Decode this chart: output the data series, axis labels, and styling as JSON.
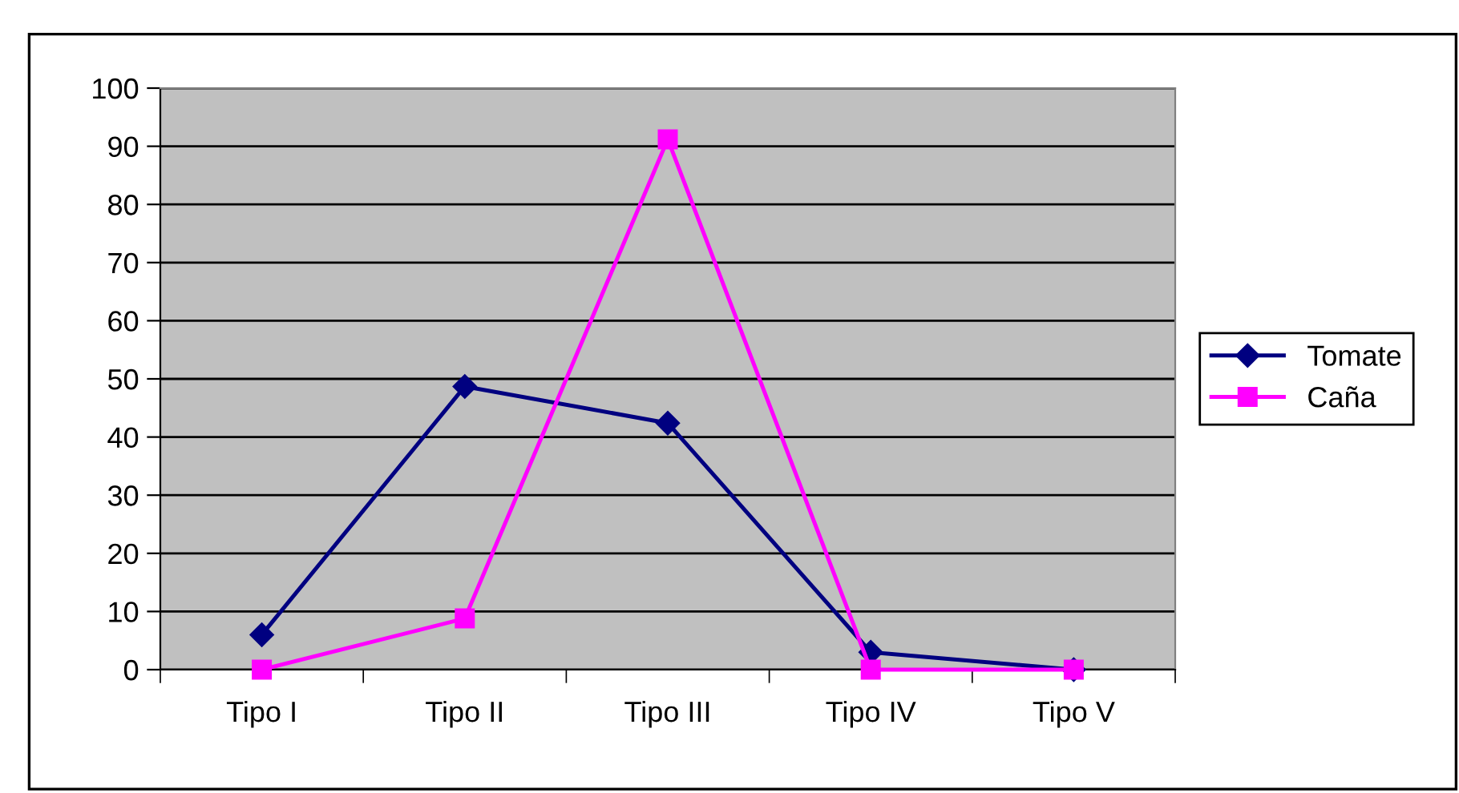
{
  "chart_data": {
    "type": "line",
    "categories": [
      "Tipo I",
      "Tipo II",
      "Tipo III",
      "Tipo IV",
      "Tipo V"
    ],
    "series": [
      {
        "name": "Tomate",
        "color": "#000080",
        "marker": "diamond",
        "values": [
          6,
          48.7,
          42.4,
          3,
          0
        ]
      },
      {
        "name": "Caña",
        "color": "#ff00ff",
        "marker": "square",
        "values": [
          0,
          8.8,
          91.2,
          0,
          0
        ]
      }
    ],
    "ylim": [
      0,
      100
    ],
    "yticks": [
      0,
      10,
      20,
      30,
      40,
      50,
      60,
      70,
      80,
      90,
      100
    ],
    "grid": "y",
    "legend": "right"
  }
}
